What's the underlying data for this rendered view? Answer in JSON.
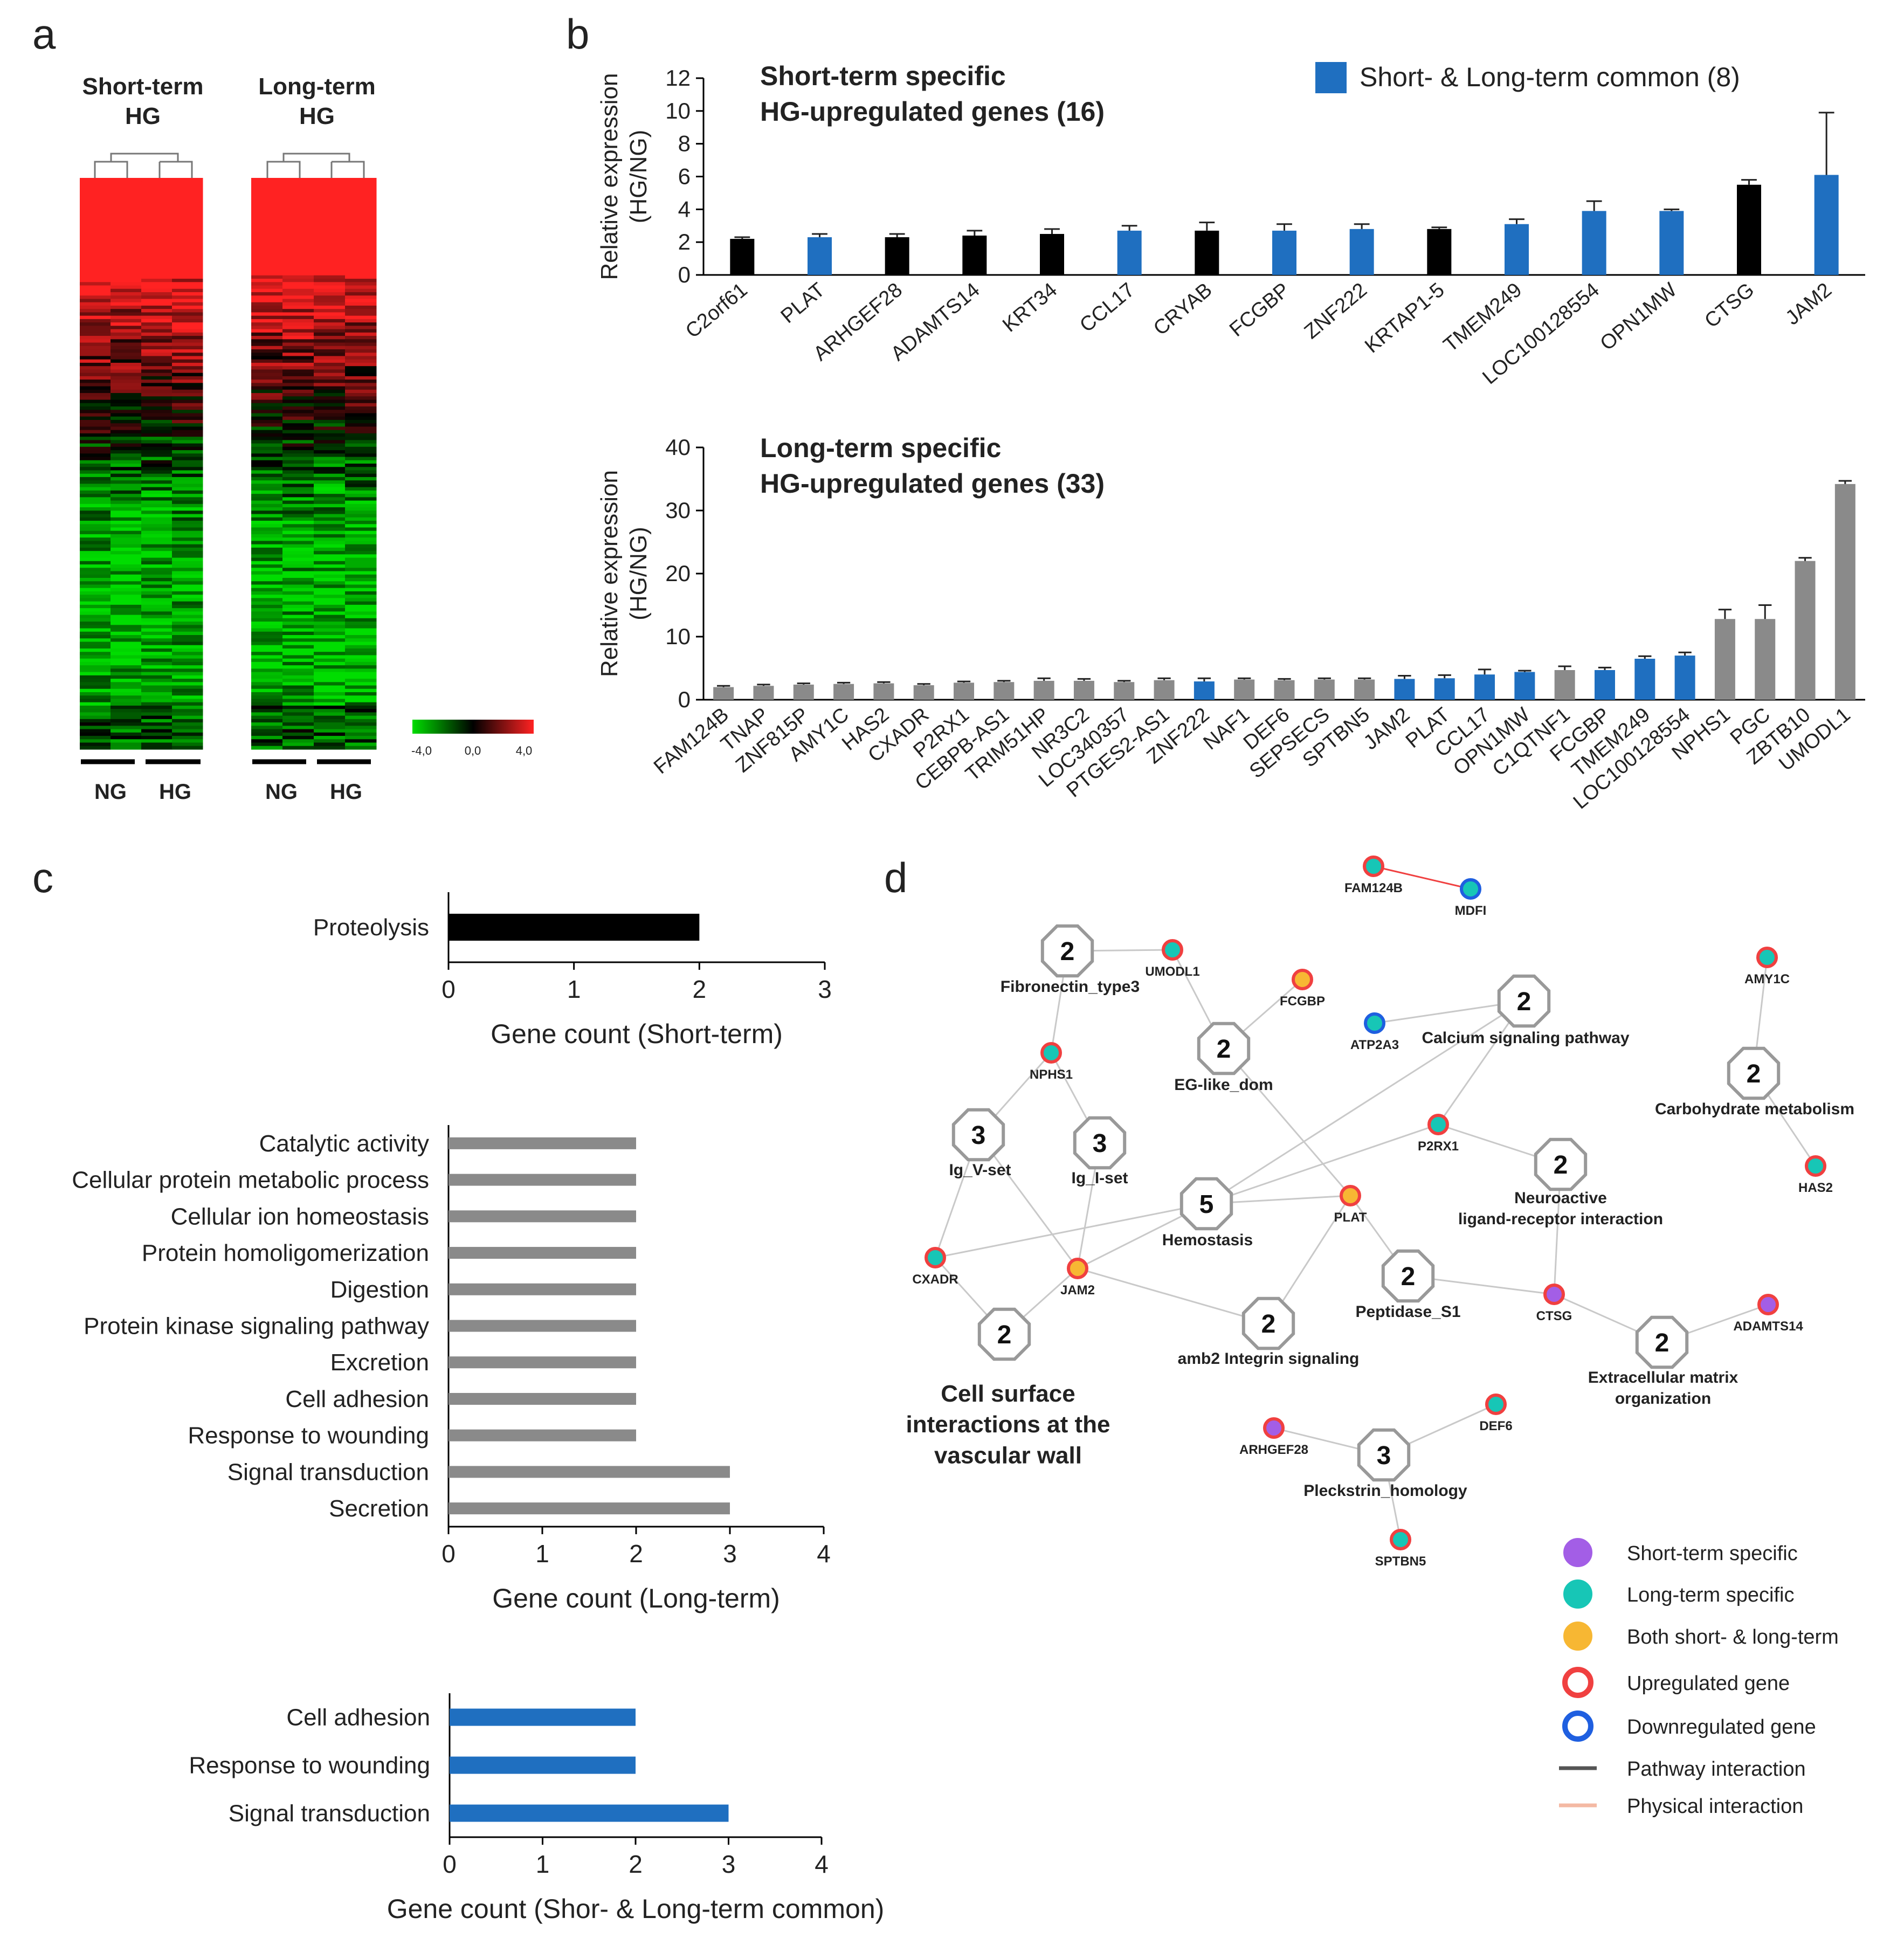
{
  "panels": {
    "a": "a",
    "b": "b",
    "c": "c",
    "d": "d"
  },
  "panel_a": {
    "heatmap_titles": [
      [
        "Short-term",
        "HG"
      ],
      [
        "Long-term",
        "HG"
      ]
    ],
    "group_labels": [
      "NG",
      "HG",
      "NG",
      "HG"
    ],
    "scale_labels": [
      "-4,0",
      "0,0",
      "4,0"
    ],
    "colors": {
      "low": "#00dd00",
      "mid": "#000000",
      "high": "#ff2222"
    }
  },
  "chart_data": [
    {
      "type": "bar",
      "id": "short_term",
      "title": [
        "Short-term specific",
        "HG-upregulated genes (16)"
      ],
      "legend": "Short- & Long-term common (8)",
      "ylabel": [
        "Relative expression",
        "(HG/NG)"
      ],
      "ylim": [
        0,
        12
      ],
      "yticks": [
        0,
        2,
        4,
        6,
        8,
        10,
        12
      ],
      "categories": [
        "C2orf61",
        "PLAT",
        "ARHGEF28",
        "ADAMTS14",
        "KRT34",
        "CCL17",
        "CRYAB",
        "FCGBP",
        "ZNF222",
        "KRTAP1-5",
        "TMEM249",
        "LOC100128554",
        "OPN1MW",
        "CTSG",
        "JAM2"
      ],
      "values": [
        2.2,
        2.3,
        2.3,
        2.4,
        2.5,
        2.7,
        2.7,
        2.7,
        2.8,
        2.8,
        3.1,
        3.9,
        3.9,
        5.5,
        6.1
      ],
      "errors": [
        0.1,
        0.2,
        0.2,
        0.3,
        0.3,
        0.3,
        0.5,
        0.4,
        0.3,
        0.1,
        0.3,
        0.6,
        0.1,
        0.3,
        3.8
      ],
      "common": [
        false,
        true,
        false,
        false,
        false,
        true,
        false,
        true,
        true,
        false,
        true,
        true,
        true,
        false,
        true
      ],
      "colors": {
        "specific": "#000000",
        "common": "#1f6fc0"
      }
    },
    {
      "type": "bar",
      "id": "long_term",
      "title": [
        "Long-term specific",
        "HG-upregulated genes (33)"
      ],
      "ylabel": [
        "Relative expression",
        "(HG/NG)"
      ],
      "ylim": [
        0,
        40
      ],
      "yticks": [
        0,
        10,
        20,
        30,
        40
      ],
      "categories": [
        "FAM124B",
        "TNAP",
        "ZNF815P",
        "AMY1C",
        "HAS2",
        "CXADR",
        "P2RX1",
        "CEBPB-AS1",
        "TRIM51HP",
        "NR3C2",
        "LOC340357",
        "PTGES2-AS1",
        "ZNF222",
        "NAF1",
        "DEF6",
        "SEPSECS",
        "SPTBN5",
        "JAM2",
        "PLAT",
        "CCL17",
        "OPN1MW",
        "C1QTNF1",
        "FCGBP",
        "TMEM249",
        "LOC100128554",
        "NPHS1",
        "PGC",
        "ZBTB10",
        "UMODL1"
      ],
      "values": [
        2.0,
        2.2,
        2.4,
        2.5,
        2.6,
        2.3,
        2.7,
        2.8,
        3.0,
        3.0,
        2.8,
        3.1,
        2.9,
        3.2,
        3.1,
        3.2,
        3.2,
        3.3,
        3.4,
        4.0,
        4.4,
        4.7,
        4.7,
        6.5,
        7.0,
        12.8,
        12.8,
        22.0,
        34.2
      ],
      "errors": [
        0.2,
        0.2,
        0.2,
        0.2,
        0.2,
        0.2,
        0.2,
        0.2,
        0.4,
        0.3,
        0.2,
        0.3,
        0.5,
        0.2,
        0.2,
        0.2,
        0.2,
        0.5,
        0.5,
        0.8,
        0.2,
        0.6,
        0.4,
        0.4,
        0.5,
        1.5,
        2.2,
        0.5,
        0.5
      ],
      "common": [
        false,
        false,
        false,
        false,
        false,
        false,
        false,
        false,
        false,
        false,
        false,
        false,
        true,
        false,
        false,
        false,
        false,
        true,
        true,
        true,
        true,
        false,
        true,
        true,
        true,
        false,
        false,
        false,
        false
      ],
      "colors": {
        "specific": "#8a8a8a",
        "common": "#1f6fc0"
      }
    },
    {
      "type": "bar",
      "orientation": "horizontal",
      "id": "go_short",
      "xlabel": "Gene count (Short-term)",
      "xlim": [
        0,
        3
      ],
      "xticks": [
        0,
        1,
        2,
        3
      ],
      "categories": [
        "Proteolysis"
      ],
      "values": [
        2
      ],
      "color": "#000000"
    },
    {
      "type": "bar",
      "orientation": "horizontal",
      "id": "go_long",
      "xlabel": "Gene count (Long-term)",
      "xlim": [
        0,
        4
      ],
      "xticks": [
        0,
        1,
        2,
        3,
        4
      ],
      "categories": [
        "Catalytic activity",
        "Cellular protein metabolic process",
        "Cellular ion homeostasis",
        "Protein homoligomerization",
        "Digestion",
        "Protein kinase signaling pathway",
        "Excretion",
        "Cell adhesion",
        "Response to wounding",
        "Signal transduction",
        "Secretion"
      ],
      "values": [
        2,
        2,
        2,
        2,
        2,
        2,
        2,
        2,
        2,
        3,
        3
      ],
      "color": "#8a8a8a"
    },
    {
      "type": "bar",
      "orientation": "horizontal",
      "id": "go_common",
      "xlabel": "Gene count (Shor- & Long-term common)",
      "xlim": [
        0,
        4
      ],
      "xticks": [
        0,
        1,
        2,
        3,
        4
      ],
      "categories": [
        "Cell adhesion",
        "Response to wounding",
        "Signal transduction"
      ],
      "values": [
        2,
        2,
        3
      ],
      "color": "#1f6fc0"
    }
  ],
  "network": {
    "pathway_nodes": [
      {
        "id": "fib",
        "count": "2",
        "label": [
          "Fibronectin_type3"
        ]
      },
      {
        "id": "eg",
        "count": "2",
        "label": [
          "EG-like_dom"
        ]
      },
      {
        "id": "calc",
        "count": "2",
        "label": [
          "Calcium signaling pathway"
        ]
      },
      {
        "id": "carb",
        "count": "2",
        "label": [
          "Carbohydrate metabolism"
        ]
      },
      {
        "id": "igv",
        "count": "3",
        "label": [
          "Ig_V-set"
        ]
      },
      {
        "id": "igi",
        "count": "3",
        "label": [
          "Ig_I-set"
        ]
      },
      {
        "id": "hemo",
        "count": "5",
        "label": [
          "Hemostasis"
        ]
      },
      {
        "id": "neuro",
        "count": "2",
        "label": [
          "Neuroactive",
          "ligand-receptor interaction"
        ]
      },
      {
        "id": "pep",
        "count": "2",
        "label": [
          "Peptidase_S1"
        ]
      },
      {
        "id": "amb2",
        "count": "2",
        "label": [
          "amb2 Integrin signaling"
        ]
      },
      {
        "id": "cell",
        "count": "2",
        "label": [
          "Cell surface",
          "interactions at the",
          "vascular wall"
        ]
      },
      {
        "id": "ecm",
        "count": "2",
        "label": [
          "Extracellular matrix",
          "organization"
        ]
      },
      {
        "id": "pleck",
        "count": "3",
        "label": [
          "Pleckstrin_homology"
        ]
      }
    ],
    "gene_nodes": [
      {
        "id": "FAM124B",
        "label": "FAM124B",
        "type": "long",
        "reg": "up"
      },
      {
        "id": "MDFI",
        "label": "MDFI",
        "type": "long",
        "reg": "down"
      },
      {
        "id": "UMODL1",
        "label": "UMODL1",
        "type": "long",
        "reg": "up"
      },
      {
        "id": "FCGBP",
        "label": "FCGBP",
        "type": "both",
        "reg": "up"
      },
      {
        "id": "ATP2A3",
        "label": "ATP2A3",
        "type": "long",
        "reg": "down"
      },
      {
        "id": "AMY1C",
        "label": "AMY1C",
        "type": "long",
        "reg": "up"
      },
      {
        "id": "NPHS1",
        "label": "NPHS1",
        "type": "long",
        "reg": "up"
      },
      {
        "id": "P2RX1",
        "label": "P2RX1",
        "type": "long",
        "reg": "up"
      },
      {
        "id": "HAS2",
        "label": "HAS2",
        "type": "long",
        "reg": "up"
      },
      {
        "id": "PLAT",
        "label": "PLAT",
        "type": "both",
        "reg": "up"
      },
      {
        "id": "CXADR",
        "label": "CXADR",
        "type": "long",
        "reg": "up"
      },
      {
        "id": "JAM2",
        "label": "JAM2",
        "type": "both",
        "reg": "up"
      },
      {
        "id": "CTSG",
        "label": "CTSG",
        "type": "short",
        "reg": "up"
      },
      {
        "id": "ADAMTS14",
        "label": "ADAMTS14",
        "type": "short",
        "reg": "up"
      },
      {
        "id": "DEF6",
        "label": "DEF6",
        "type": "long",
        "reg": "up"
      },
      {
        "id": "ARHGEF28",
        "label": "ARHGEF28",
        "type": "short",
        "reg": "up"
      },
      {
        "id": "SPTBN5",
        "label": "SPTBN5",
        "type": "long",
        "reg": "up"
      }
    ],
    "edges": [
      [
        "FAM124B",
        "MDFI",
        "physical"
      ],
      [
        "fib",
        "UMODL1",
        "pathway"
      ],
      [
        "fib",
        "NPHS1",
        "pathway"
      ],
      [
        "UMODL1",
        "eg",
        "pathway"
      ],
      [
        "FCGBP",
        "eg",
        "pathway"
      ],
      [
        "eg",
        "PLAT",
        "pathway"
      ],
      [
        "ATP2A3",
        "calc",
        "pathway"
      ],
      [
        "calc",
        "P2RX1",
        "pathway"
      ],
      [
        "calc",
        "hemo",
        "pathway"
      ],
      [
        "AMY1C",
        "carb",
        "pathway"
      ],
      [
        "carb",
        "HAS2",
        "pathway"
      ],
      [
        "NPHS1",
        "igv",
        "pathway"
      ],
      [
        "NPHS1",
        "igi",
        "pathway"
      ],
      [
        "igv",
        "CXADR",
        "pathway"
      ],
      [
        "igv",
        "JAM2",
        "pathway"
      ],
      [
        "igi",
        "JAM2",
        "pathway"
      ],
      [
        "CXADR",
        "hemo",
        "pathway"
      ],
      [
        "JAM2",
        "hemo",
        "pathway"
      ],
      [
        "hemo",
        "PLAT",
        "pathway"
      ],
      [
        "hemo",
        "P2RX1",
        "pathway"
      ],
      [
        "P2RX1",
        "neuro",
        "pathway"
      ],
      [
        "neuro",
        "CTSG",
        "pathway"
      ],
      [
        "PLAT",
        "pep",
        "pathway"
      ],
      [
        "pep",
        "CTSG",
        "pathway"
      ],
      [
        "PLAT",
        "amb2",
        "pathway"
      ],
      [
        "JAM2",
        "amb2",
        "pathway"
      ],
      [
        "CXADR",
        "cell",
        "pathway"
      ],
      [
        "JAM2",
        "cell",
        "pathway"
      ],
      [
        "CTSG",
        "ecm",
        "pathway"
      ],
      [
        "ecm",
        "ADAMTS14",
        "pathway"
      ],
      [
        "ARHGEF28",
        "pleck",
        "pathway"
      ],
      [
        "pleck",
        "DEF6",
        "pathway"
      ],
      [
        "pleck",
        "SPTBN5",
        "pathway"
      ]
    ],
    "legend": [
      {
        "label": "Short-term specific",
        "kind": "short"
      },
      {
        "label": "Long-term specific",
        "kind": "long"
      },
      {
        "label": "Both short- & long-term",
        "kind": "both"
      },
      {
        "label": "Upregulated gene",
        "kind": "up"
      },
      {
        "label": "Downregulated gene",
        "kind": "down"
      },
      {
        "label": "Pathway interaction",
        "kind": "pathway"
      },
      {
        "label": "Physical interaction",
        "kind": "physical"
      }
    ],
    "colors": {
      "short": "#a35ee6",
      "long": "#17c6b6",
      "both": "#f7b733",
      "up": "#f04040",
      "down": "#1f5fe0",
      "pathway": "#555555",
      "physical": "#f4b9a4",
      "edge": "#c9c9c9"
    }
  }
}
